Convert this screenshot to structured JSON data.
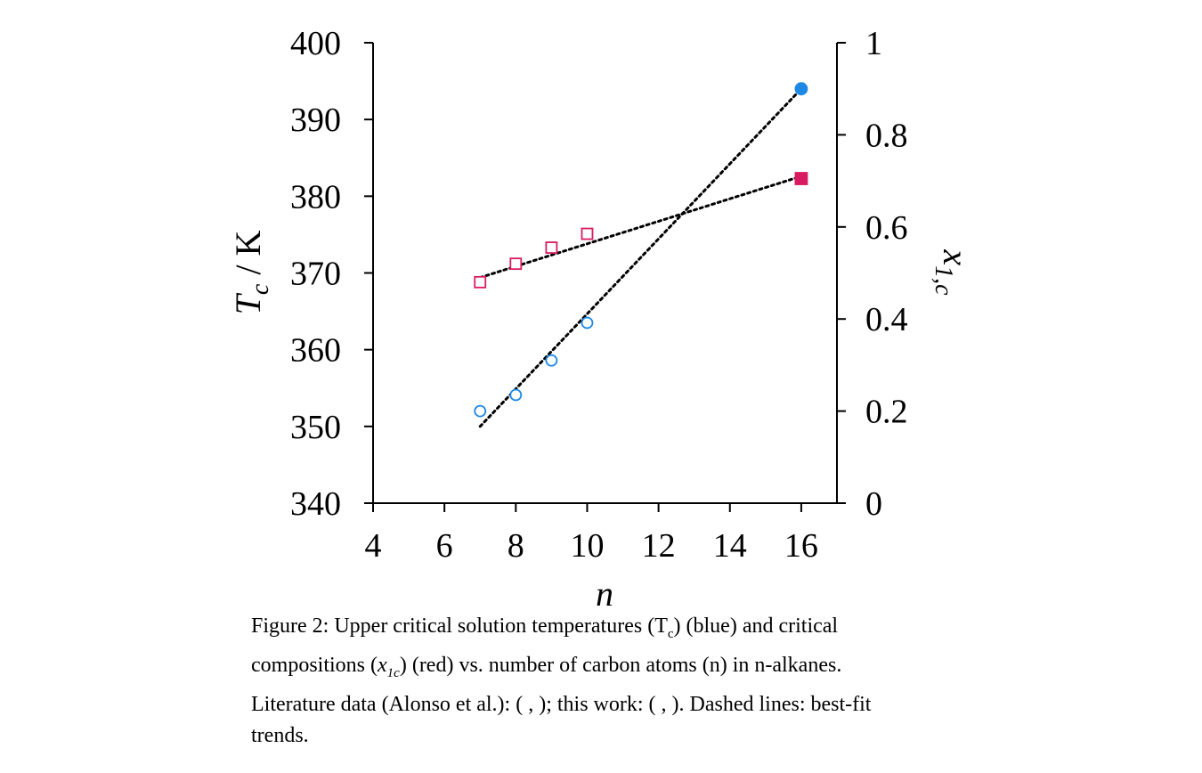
{
  "chart_data": {
    "type": "scatter",
    "x": {
      "label": "n",
      "range": [
        4,
        17
      ],
      "ticks": [
        4,
        6,
        8,
        10,
        12,
        14,
        16
      ]
    },
    "y_left": {
      "label_main": "T",
      "label_sub": "c",
      "label_unit": " / K",
      "range": [
        340,
        400
      ],
      "ticks": [
        340,
        350,
        360,
        370,
        380,
        390,
        400
      ]
    },
    "y_right": {
      "label_main": "x",
      "label_sub": "1,c",
      "range": [
        0,
        1
      ],
      "ticks": [
        "0",
        "0.2",
        "0.4",
        "0.6",
        "0.8",
        "1"
      ]
    },
    "grid": false,
    "series": [
      {
        "axis": "left",
        "color": "#1e88e5",
        "marker": "circle",
        "filled": false,
        "points": [
          [
            7,
            352.0
          ],
          [
            8,
            354.1
          ],
          [
            9,
            358.6
          ],
          [
            10,
            363.5
          ]
        ]
      },
      {
        "axis": "left",
        "color": "#1e88e5",
        "marker": "circle",
        "filled": true,
        "points": [
          [
            16,
            394.0
          ]
        ]
      },
      {
        "axis": "right",
        "color": "#d81b60",
        "marker": "square",
        "filled": false,
        "points": [
          [
            7,
            0.48
          ],
          [
            8,
            0.52
          ],
          [
            9,
            0.555
          ],
          [
            10,
            0.585
          ]
        ]
      },
      {
        "axis": "right",
        "color": "#d81b60",
        "marker": "square",
        "filled": true,
        "points": [
          [
            16,
            0.705
          ]
        ]
      }
    ],
    "trend_lines": [
      {
        "axis": "left",
        "from": [
          7,
          350.0
        ],
        "to": [
          16,
          394.0
        ]
      },
      {
        "axis": "right",
        "from": [
          7,
          0.49
        ],
        "to": [
          16,
          0.71
        ]
      }
    ]
  },
  "caption": {
    "part1": "Figure 2: Upper critical solution temperatures (T",
    "part1_sub": "c",
    "part2": ") (blue) and critical compositions (",
    "part2_italic": "x",
    "part2_sub": "1c",
    "part3": ") (red) vs. number of carbon atoms (n) in n-alkanes. Literature data (Alonso et al.): ( , ); this work: ( , ). Dashed lines: best-fit trends."
  }
}
